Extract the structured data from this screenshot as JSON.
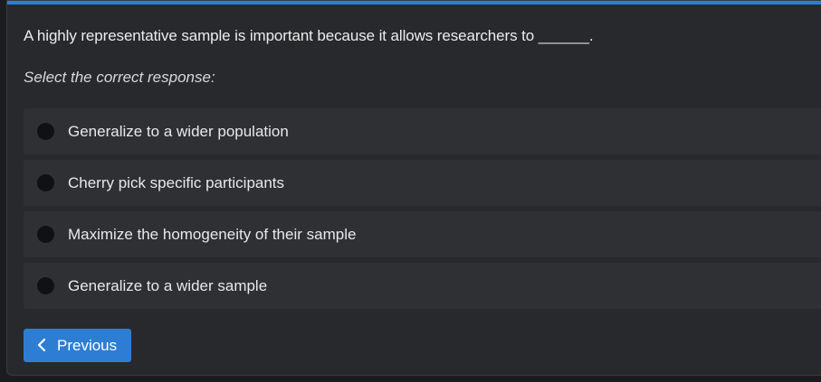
{
  "question": {
    "text": "A highly representative sample is important because it allows researchers to ______."
  },
  "instruction": "Select the correct response:",
  "options": [
    {
      "label": "Generalize to a wider population"
    },
    {
      "label": "Cherry pick specific participants"
    },
    {
      "label": "Maximize the homogeneity of their sample"
    },
    {
      "label": "Generalize to a wider sample"
    }
  ],
  "navigation": {
    "previous_label": "Previous",
    "previous_icon": "chevron-left-icon"
  },
  "colors": {
    "accent": "#2d7ed3",
    "card_background": "#28292d",
    "option_background": "#2f3034"
  }
}
